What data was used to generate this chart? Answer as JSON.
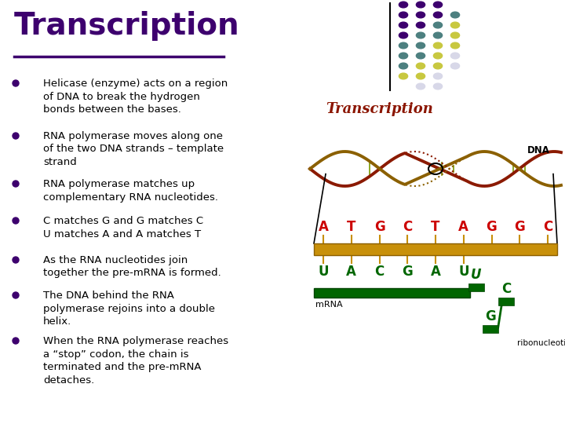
{
  "title": "Transcription",
  "title_color": "#3d006e",
  "bg_color": "#ffffff",
  "bullet_color": "#000000",
  "bullet_points": [
    "Helicase (enzyme) acts on a region\nof DNA to break the hydrogen\nbonds between the bases.",
    "RNA polymerase moves along one\nof the two DNA strands – template\nstrand",
    "RNA polymerase matches up\ncomplementary RNA nucleotides.",
    "C matches G and G matches C\nU matches A and A matches T",
    "As the RNA nucleotides join\ntogether the pre-mRNA is formed.",
    "The DNA behind the RNA\npolymerase rejoins into a double\nhelix.",
    "When the RNA polymerase reaches\na “stop” codon, the chain is\nterminated and the pre-mRNA\ndetaches."
  ],
  "dot_grid_colors": [
    [
      "#3d006e",
      "#3d006e",
      "#3d006e",
      "none"
    ],
    [
      "#3d006e",
      "#3d006e",
      "#3d006e",
      "#4d8080"
    ],
    [
      "#3d006e",
      "#3d006e",
      "#4d8080",
      "#c8c840"
    ],
    [
      "#3d006e",
      "#4d8080",
      "#4d8080",
      "#c8c840"
    ],
    [
      "#4d8080",
      "#4d8080",
      "#c8c840",
      "#c8c840"
    ],
    [
      "#4d8080",
      "#4d8080",
      "#c8c840",
      "#d8d8e8"
    ],
    [
      "#4d8080",
      "#c8c840",
      "#c8c840",
      "#d8d8e8"
    ],
    [
      "#c8c840",
      "#c8c840",
      "#d8d8e8",
      "none"
    ],
    [
      "none",
      "#d8d8e8",
      "#d8d8e8",
      "none"
    ]
  ],
  "dna_bases": [
    "A",
    "T",
    "G",
    "C",
    "T",
    "A",
    "G",
    "G",
    "C"
  ],
  "mrna_bases": [
    "U",
    "A",
    "C",
    "G",
    "A",
    "U"
  ],
  "helix_label": "Transcription",
  "dna_label": "DNA",
  "mrna_label": "mRNA",
  "ribo_label": "ribonucleotides"
}
